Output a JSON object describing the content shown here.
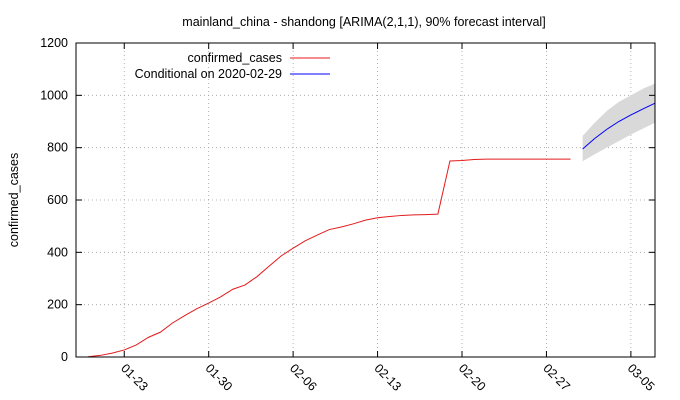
{
  "chart_data": {
    "type": "line",
    "title": "mainland_china - shandong [ARIMA(2,1,1), 90% forecast interval]",
    "xlabel": "",
    "ylabel": "confirmed_cases",
    "ylim": [
      0,
      1200
    ],
    "yticks": [
      "0",
      "200",
      "400",
      "600",
      "800",
      "1000",
      "1200"
    ],
    "xlim": [
      "2020-01-19",
      "2020-03-07"
    ],
    "xticks": [
      {
        "date": "2020-01-23",
        "label": "01-23"
      },
      {
        "date": "2020-01-30",
        "label": "01-30"
      },
      {
        "date": "2020-02-06",
        "label": "02-06"
      },
      {
        "date": "2020-02-13",
        "label": "02-13"
      },
      {
        "date": "2020-02-20",
        "label": "02-20"
      },
      {
        "date": "2020-02-27",
        "label": "02-27"
      },
      {
        "date": "2020-03-05",
        "label": "03-05"
      }
    ],
    "grid": true,
    "legend_position": "top-left",
    "series": [
      {
        "name": "confirmed_cases",
        "color": "#e41a1c",
        "x": [
          "2020-01-20",
          "2020-01-21",
          "2020-01-22",
          "2020-01-23",
          "2020-01-24",
          "2020-01-25",
          "2020-01-26",
          "2020-01-27",
          "2020-01-28",
          "2020-01-29",
          "2020-01-30",
          "2020-01-31",
          "2020-02-01",
          "2020-02-02",
          "2020-02-03",
          "2020-02-04",
          "2020-02-05",
          "2020-02-06",
          "2020-02-07",
          "2020-02-08",
          "2020-02-09",
          "2020-02-10",
          "2020-02-11",
          "2020-02-12",
          "2020-02-13",
          "2020-02-14",
          "2020-02-15",
          "2020-02-16",
          "2020-02-17",
          "2020-02-18",
          "2020-02-19",
          "2020-02-20",
          "2020-02-21",
          "2020-02-22",
          "2020-02-23",
          "2020-02-24",
          "2020-02-25",
          "2020-02-26",
          "2020-02-27",
          "2020-02-28",
          "2020-02-29"
        ],
        "values": [
          1,
          6,
          15,
          27,
          46,
          75,
          95,
          130,
          158,
          184,
          206,
          230,
          259,
          275,
          307,
          347,
          386,
          416,
          444,
          466,
          487,
          497,
          509,
          523,
          532,
          537,
          541,
          543,
          544,
          546,
          749,
          751,
          755,
          756,
          756,
          756,
          756,
          756,
          756,
          756,
          756
        ]
      },
      {
        "name": "Conditional on 2020-02-29",
        "color": "#0000ff",
        "x": [
          "2020-03-01",
          "2020-03-02",
          "2020-03-03",
          "2020-03-04",
          "2020-03-05",
          "2020-03-06",
          "2020-03-07"
        ],
        "values": [
          795,
          835,
          870,
          900,
          925,
          948,
          970
        ],
        "interval_lower": [
          748,
          775,
          800,
          825,
          850,
          873,
          895
        ],
        "interval_upper": [
          845,
          895,
          940,
          975,
          1000,
          1025,
          1045
        ],
        "interval_color": "#d9d9d9"
      }
    ]
  }
}
